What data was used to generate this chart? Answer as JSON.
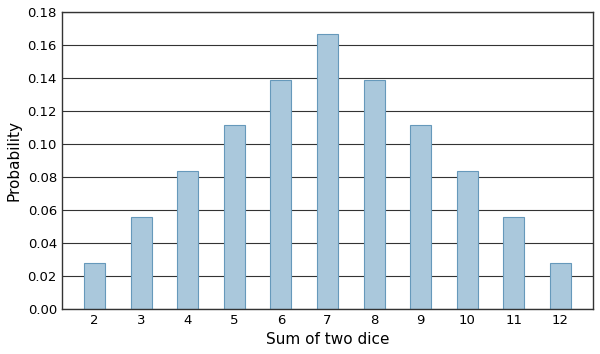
{
  "categories": [
    2,
    3,
    4,
    5,
    6,
    7,
    8,
    9,
    10,
    11,
    12
  ],
  "values": [
    0.02778,
    0.05556,
    0.08333,
    0.11111,
    0.13889,
    0.16667,
    0.13889,
    0.11111,
    0.08333,
    0.05556,
    0.02778
  ],
  "bar_color": "#aac8dc",
  "bar_edge_color": "#6699bb",
  "title": "",
  "xlabel": "Sum of two dice",
  "ylabel": "Probability",
  "ylim": [
    0,
    0.18
  ],
  "yticks": [
    0.0,
    0.02,
    0.04,
    0.06,
    0.08,
    0.1,
    0.12,
    0.14,
    0.16,
    0.18
  ],
  "xlabel_fontsize": 11,
  "ylabel_fontsize": 11,
  "tick_fontsize": 9.5,
  "bar_width": 0.45,
  "background_color": "#ffffff",
  "grid_color": "#333333",
  "grid_linewidth": 0.8,
  "spine_color": "#333333",
  "spine_linewidth": 1.0
}
